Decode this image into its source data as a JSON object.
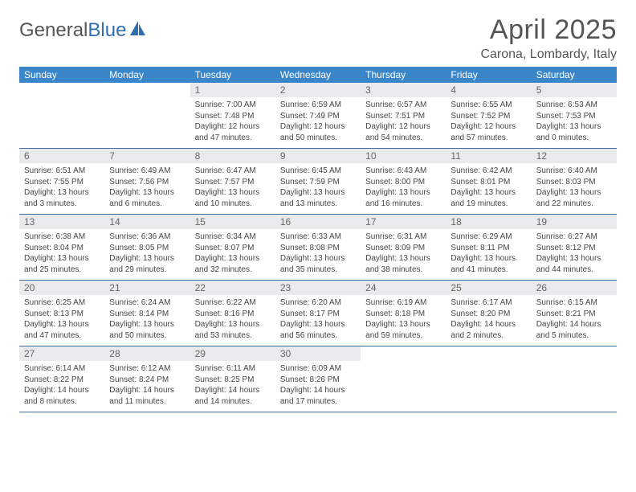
{
  "logo": {
    "text_left": "General",
    "text_right": "Blue"
  },
  "title": "April 2025",
  "location": "Carona, Lombardy, Italy",
  "colors": {
    "header_bg": "#3b86c8",
    "header_text": "#ffffff",
    "daynum_bg": "#e9eaeb",
    "daynum_text": "#666666",
    "body_text": "#464646",
    "rule": "#3b6da0",
    "title_text": "#555555"
  },
  "typography": {
    "title_fontsize": 34,
    "location_fontsize": 16,
    "dayhead_fontsize": 12,
    "daynum_fontsize": 12,
    "cell_fontsize": 10
  },
  "day_headers": [
    "Sunday",
    "Monday",
    "Tuesday",
    "Wednesday",
    "Thursday",
    "Friday",
    "Saturday"
  ],
  "weeks": [
    [
      {
        "n": "",
        "sr": "",
        "ss": "",
        "dl": ""
      },
      {
        "n": "",
        "sr": "",
        "ss": "",
        "dl": ""
      },
      {
        "n": "1",
        "sr": "Sunrise: 7:00 AM",
        "ss": "Sunset: 7:48 PM",
        "dl": "Daylight: 12 hours and 47 minutes."
      },
      {
        "n": "2",
        "sr": "Sunrise: 6:59 AM",
        "ss": "Sunset: 7:49 PM",
        "dl": "Daylight: 12 hours and 50 minutes."
      },
      {
        "n": "3",
        "sr": "Sunrise: 6:57 AM",
        "ss": "Sunset: 7:51 PM",
        "dl": "Daylight: 12 hours and 54 minutes."
      },
      {
        "n": "4",
        "sr": "Sunrise: 6:55 AM",
        "ss": "Sunset: 7:52 PM",
        "dl": "Daylight: 12 hours and 57 minutes."
      },
      {
        "n": "5",
        "sr": "Sunrise: 6:53 AM",
        "ss": "Sunset: 7:53 PM",
        "dl": "Daylight: 13 hours and 0 minutes."
      }
    ],
    [
      {
        "n": "6",
        "sr": "Sunrise: 6:51 AM",
        "ss": "Sunset: 7:55 PM",
        "dl": "Daylight: 13 hours and 3 minutes."
      },
      {
        "n": "7",
        "sr": "Sunrise: 6:49 AM",
        "ss": "Sunset: 7:56 PM",
        "dl": "Daylight: 13 hours and 6 minutes."
      },
      {
        "n": "8",
        "sr": "Sunrise: 6:47 AM",
        "ss": "Sunset: 7:57 PM",
        "dl": "Daylight: 13 hours and 10 minutes."
      },
      {
        "n": "9",
        "sr": "Sunrise: 6:45 AM",
        "ss": "Sunset: 7:59 PM",
        "dl": "Daylight: 13 hours and 13 minutes."
      },
      {
        "n": "10",
        "sr": "Sunrise: 6:43 AM",
        "ss": "Sunset: 8:00 PM",
        "dl": "Daylight: 13 hours and 16 minutes."
      },
      {
        "n": "11",
        "sr": "Sunrise: 6:42 AM",
        "ss": "Sunset: 8:01 PM",
        "dl": "Daylight: 13 hours and 19 minutes."
      },
      {
        "n": "12",
        "sr": "Sunrise: 6:40 AM",
        "ss": "Sunset: 8:03 PM",
        "dl": "Daylight: 13 hours and 22 minutes."
      }
    ],
    [
      {
        "n": "13",
        "sr": "Sunrise: 6:38 AM",
        "ss": "Sunset: 8:04 PM",
        "dl": "Daylight: 13 hours and 25 minutes."
      },
      {
        "n": "14",
        "sr": "Sunrise: 6:36 AM",
        "ss": "Sunset: 8:05 PM",
        "dl": "Daylight: 13 hours and 29 minutes."
      },
      {
        "n": "15",
        "sr": "Sunrise: 6:34 AM",
        "ss": "Sunset: 8:07 PM",
        "dl": "Daylight: 13 hours and 32 minutes."
      },
      {
        "n": "16",
        "sr": "Sunrise: 6:33 AM",
        "ss": "Sunset: 8:08 PM",
        "dl": "Daylight: 13 hours and 35 minutes."
      },
      {
        "n": "17",
        "sr": "Sunrise: 6:31 AM",
        "ss": "Sunset: 8:09 PM",
        "dl": "Daylight: 13 hours and 38 minutes."
      },
      {
        "n": "18",
        "sr": "Sunrise: 6:29 AM",
        "ss": "Sunset: 8:11 PM",
        "dl": "Daylight: 13 hours and 41 minutes."
      },
      {
        "n": "19",
        "sr": "Sunrise: 6:27 AM",
        "ss": "Sunset: 8:12 PM",
        "dl": "Daylight: 13 hours and 44 minutes."
      }
    ],
    [
      {
        "n": "20",
        "sr": "Sunrise: 6:25 AM",
        "ss": "Sunset: 8:13 PM",
        "dl": "Daylight: 13 hours and 47 minutes."
      },
      {
        "n": "21",
        "sr": "Sunrise: 6:24 AM",
        "ss": "Sunset: 8:14 PM",
        "dl": "Daylight: 13 hours and 50 minutes."
      },
      {
        "n": "22",
        "sr": "Sunrise: 6:22 AM",
        "ss": "Sunset: 8:16 PM",
        "dl": "Daylight: 13 hours and 53 minutes."
      },
      {
        "n": "23",
        "sr": "Sunrise: 6:20 AM",
        "ss": "Sunset: 8:17 PM",
        "dl": "Daylight: 13 hours and 56 minutes."
      },
      {
        "n": "24",
        "sr": "Sunrise: 6:19 AM",
        "ss": "Sunset: 8:18 PM",
        "dl": "Daylight: 13 hours and 59 minutes."
      },
      {
        "n": "25",
        "sr": "Sunrise: 6:17 AM",
        "ss": "Sunset: 8:20 PM",
        "dl": "Daylight: 14 hours and 2 minutes."
      },
      {
        "n": "26",
        "sr": "Sunrise: 6:15 AM",
        "ss": "Sunset: 8:21 PM",
        "dl": "Daylight: 14 hours and 5 minutes."
      }
    ],
    [
      {
        "n": "27",
        "sr": "Sunrise: 6:14 AM",
        "ss": "Sunset: 8:22 PM",
        "dl": "Daylight: 14 hours and 8 minutes."
      },
      {
        "n": "28",
        "sr": "Sunrise: 6:12 AM",
        "ss": "Sunset: 8:24 PM",
        "dl": "Daylight: 14 hours and 11 minutes."
      },
      {
        "n": "29",
        "sr": "Sunrise: 6:11 AM",
        "ss": "Sunset: 8:25 PM",
        "dl": "Daylight: 14 hours and 14 minutes."
      },
      {
        "n": "30",
        "sr": "Sunrise: 6:09 AM",
        "ss": "Sunset: 8:26 PM",
        "dl": "Daylight: 14 hours and 17 minutes."
      },
      {
        "n": "",
        "sr": "",
        "ss": "",
        "dl": ""
      },
      {
        "n": "",
        "sr": "",
        "ss": "",
        "dl": ""
      },
      {
        "n": "",
        "sr": "",
        "ss": "",
        "dl": ""
      }
    ]
  ]
}
